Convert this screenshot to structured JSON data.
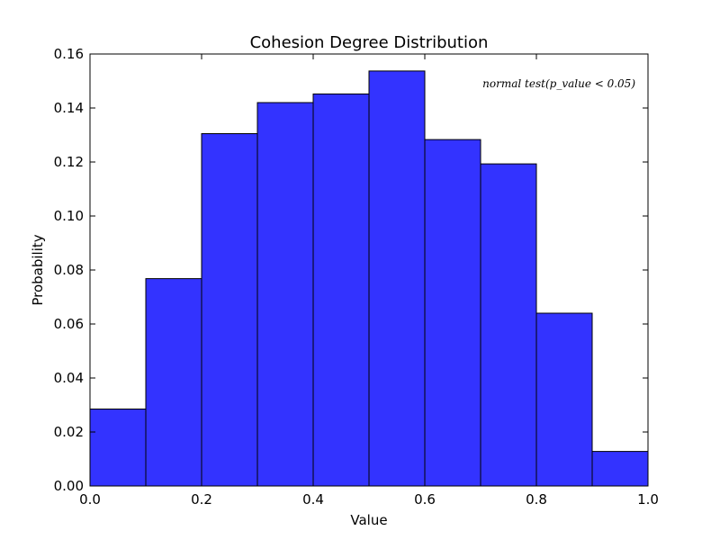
{
  "chart_data": {
    "type": "bar",
    "title": "Cohesion Degree Distribution",
    "xlabel": "Value",
    "ylabel": "Probability",
    "xlim": [
      0.0,
      1.0
    ],
    "ylim": [
      0.0,
      0.16
    ],
    "bin_edges": [
      0.0,
      0.1,
      0.2,
      0.3,
      0.4,
      0.5,
      0.6,
      0.7,
      0.8,
      0.9,
      1.0
    ],
    "values": [
      0.0285,
      0.0768,
      0.1305,
      0.142,
      0.1452,
      0.1537,
      0.1283,
      0.1193,
      0.064,
      0.0128
    ],
    "x_ticks": [
      "0.0",
      "0.2",
      "0.4",
      "0.6",
      "0.8",
      "1.0"
    ],
    "y_ticks": [
      "0.00",
      "0.02",
      "0.04",
      "0.06",
      "0.08",
      "0.10",
      "0.12",
      "0.14",
      "0.16"
    ],
    "annotation": "normal test(p_value < 0.05)",
    "bar_color": "#3333ff",
    "grid": false
  }
}
